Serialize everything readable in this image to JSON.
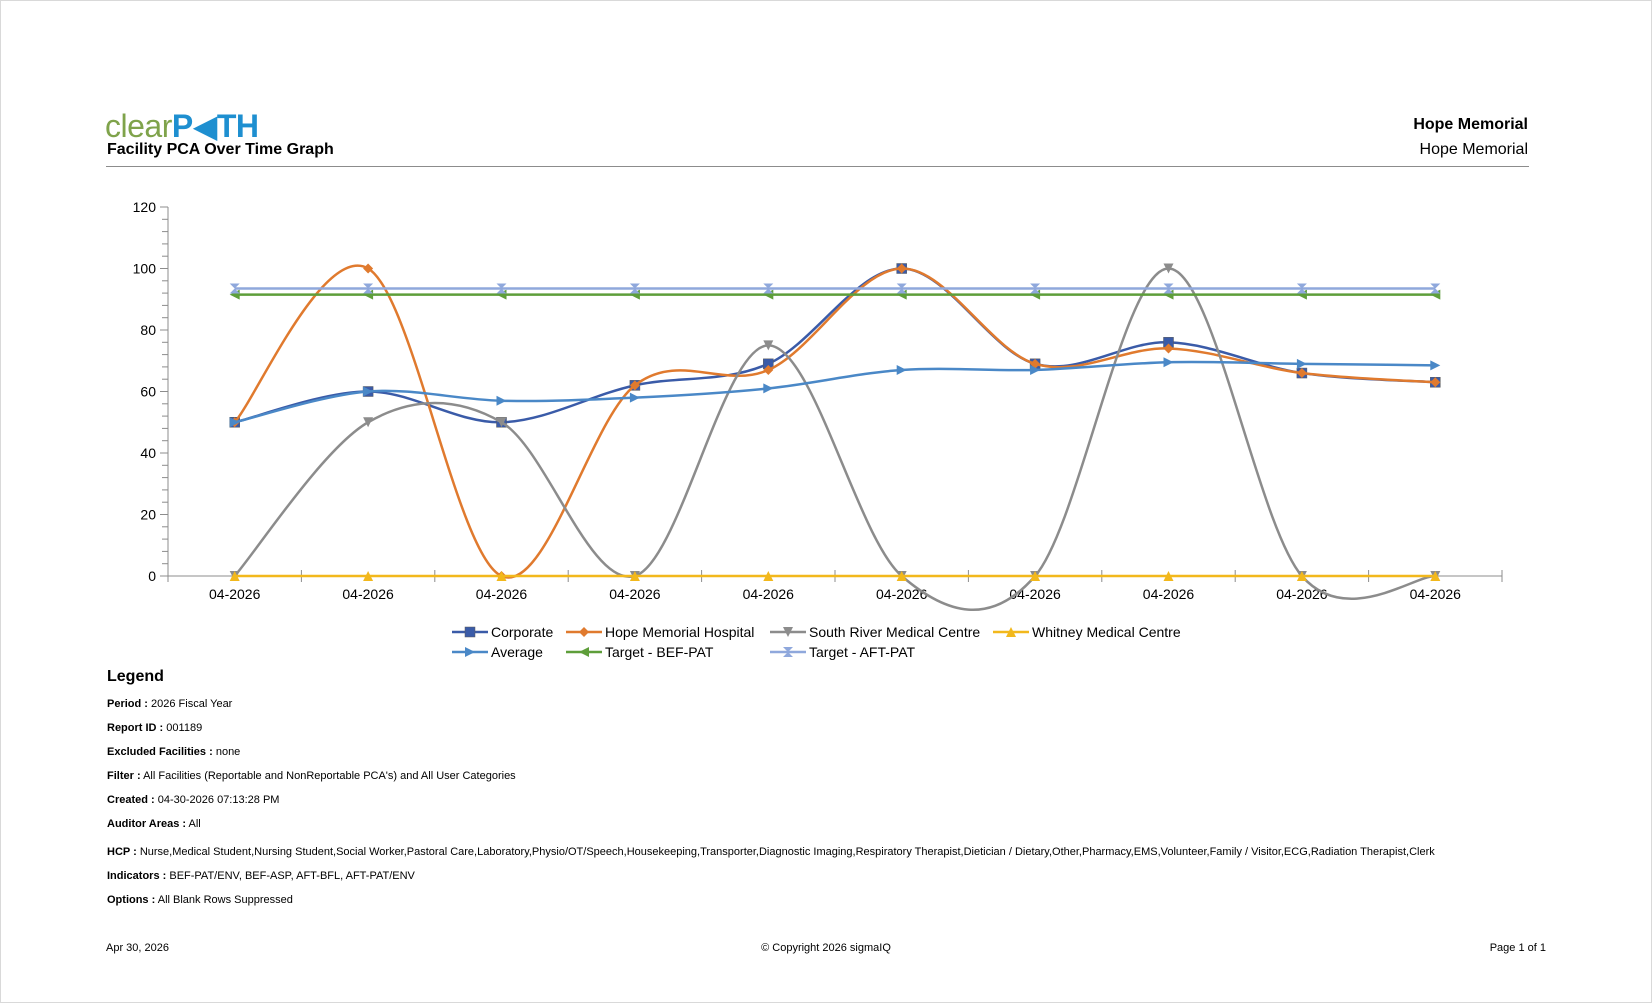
{
  "header": {
    "logo_part1": "clear",
    "logo_part2": "P",
    "logo_part3": "TH",
    "report_title": "Facility PCA Over Time Graph",
    "facility_bold": "Hope Memorial",
    "facility_sub": "Hope Memorial"
  },
  "chart_data": {
    "type": "line",
    "categories": [
      "04-2026",
      "04-2026",
      "04-2026",
      "04-2026",
      "04-2026",
      "04-2026",
      "04-2026",
      "04-2026",
      "04-2026",
      "04-2026"
    ],
    "ylim": [
      0,
      120
    ],
    "yticks": [
      0,
      20,
      40,
      60,
      80,
      100,
      120
    ],
    "grid": false,
    "legend_position": "bottom",
    "series": [
      {
        "name": "Corporate",
        "color": "#3a5ba8",
        "marker": "square",
        "values": [
          50,
          60,
          50,
          62,
          69,
          100,
          69,
          76,
          66,
          63
        ]
      },
      {
        "name": "Hope Memorial Hospital",
        "color": "#e07a2e",
        "marker": "diamond",
        "values": [
          50,
          100,
          0,
          62,
          67,
          100,
          69,
          74,
          66,
          63
        ]
      },
      {
        "name": "South River Medical Centre",
        "color": "#8c8c8c",
        "marker": "triangle-down",
        "values": [
          0,
          50,
          50,
          0,
          75,
          0,
          0,
          100,
          0,
          0
        ]
      },
      {
        "name": "Whitney Medical Centre",
        "color": "#f2b81c",
        "marker": "triangle-up",
        "values": [
          0,
          0,
          0,
          0,
          0,
          0,
          0,
          0,
          0,
          0
        ]
      },
      {
        "name": "Average",
        "color": "#4a88c7",
        "marker": "triangle-right",
        "values": [
          50,
          60,
          57,
          58,
          61,
          67,
          67,
          69.5,
          69,
          68.5
        ]
      },
      {
        "name": "Target - BEF-PAT",
        "color": "#5e9e3a",
        "marker": "triangle-left",
        "values": [
          91.5,
          91.5,
          91.5,
          91.5,
          91.5,
          91.5,
          91.5,
          91.5,
          91.5,
          91.5
        ]
      },
      {
        "name": "Target - AFT-PAT",
        "color": "#8fa8dc",
        "marker": "bowtie",
        "values": [
          93.5,
          93.5,
          93.5,
          93.5,
          93.5,
          93.5,
          93.5,
          93.5,
          93.5,
          93.5
        ]
      }
    ]
  },
  "legend": {
    "title": "Legend",
    "period_label": "Period :",
    "period_value": "2026 Fiscal Year",
    "report_id_label": "Report ID :",
    "report_id_value": "001189",
    "excluded_label": "Excluded Facilities :",
    "excluded_value": "none",
    "filter_label": "Filter :",
    "filter_value": "All Facilities (Reportable and NonReportable PCA's) and All User Categories",
    "created_label": "Created :",
    "created_value": "04-30-2026 07:13:28 PM",
    "auditor_label": "Auditor Areas :",
    "auditor_value": "All",
    "hcp_label": "HCP :",
    "hcp_value": "Nurse,Medical Student,Nursing Student,Social Worker,Pastoral Care,Laboratory,Physio/OT/Speech,Housekeeping,Transporter,Diagnostic Imaging,Respiratory Therapist,Dietician / Dietary,Other,Pharmacy,EMS,Volunteer,Family / Visitor,ECG,Radiation Therapist,Clerk",
    "indicators_label": "Indicators :",
    "indicators_value": "BEF-PAT/ENV, BEF-ASP, AFT-BFL, AFT-PAT/ENV",
    "options_label": "Options :",
    "options_value": "All Blank Rows Suppressed"
  },
  "footer": {
    "date": "Apr 30, 2026",
    "copyright": "© Copyright 2026 sigmaIQ",
    "page": "Page 1 of 1"
  }
}
